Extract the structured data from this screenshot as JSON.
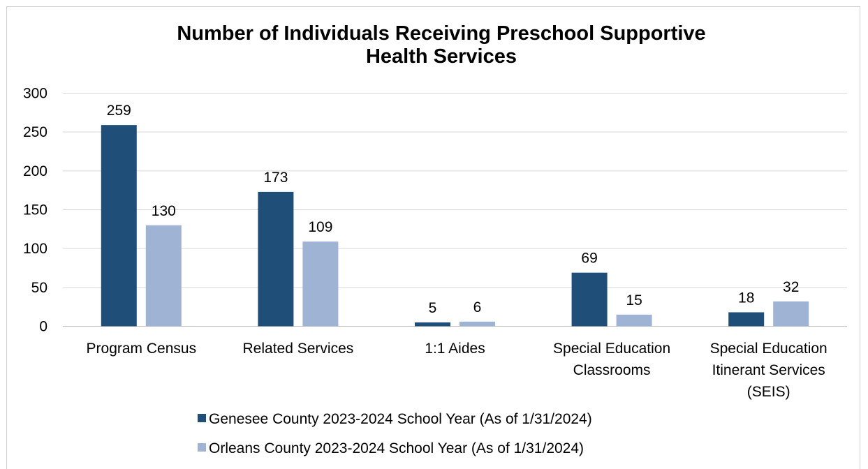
{
  "chart_data": {
    "type": "bar",
    "title_lines": [
      "Number of Individuals Receiving Preschool Supportive",
      "Health Services"
    ],
    "categories": [
      [
        "Program Census"
      ],
      [
        "Related Services"
      ],
      [
        "1:1 Aides"
      ],
      [
        "Special Education",
        "Classrooms"
      ],
      [
        "Special Education",
        "Itinerant Services",
        "(SEIS)"
      ]
    ],
    "series": [
      {
        "name": "Genesee County 2023-2024 School Year (As of 1/31/2024)",
        "color": "#1f4e79",
        "values": [
          259,
          173,
          5,
          69,
          18
        ]
      },
      {
        "name": "Orleans County 2023-2024 School Year (As of 1/31/2024)",
        "color": "#9fb4d4",
        "values": [
          130,
          109,
          6,
          15,
          32
        ]
      }
    ],
    "ylim": [
      0,
      300
    ],
    "yticks": [
      0,
      50,
      100,
      150,
      200,
      250,
      300
    ],
    "grid": true,
    "legend_position": "bottom"
  }
}
